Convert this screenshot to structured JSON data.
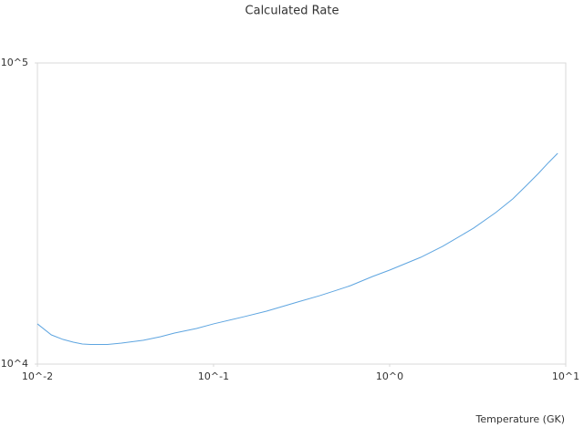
{
  "chart_data": {
    "type": "line",
    "title": "Calculated Rate",
    "x_label": "Temperature (GK)",
    "x": [
      0.01,
      0.012,
      0.014,
      0.016,
      0.018,
      0.02,
      0.025,
      0.03,
      0.04,
      0.05,
      0.06,
      0.08,
      0.1,
      0.15,
      0.2,
      0.3,
      0.4,
      0.5,
      0.6,
      0.8,
      1,
      1.5,
      2,
      3,
      4,
      5,
      6,
      7,
      8,
      9
    ],
    "series": [
      {
        "color": "#5ea5e0",
        "values": [
          13600,
          12500,
          12070,
          11820,
          11660,
          11620,
          11620,
          11740,
          12000,
          12330,
          12680,
          13130,
          13600,
          14380,
          14990,
          16070,
          16870,
          17590,
          18220,
          19540,
          20520,
          22620,
          24600,
          28290,
          31840,
          35350,
          39260,
          42980,
          46750,
          50120
        ]
      }
    ],
    "xscale": "log",
    "yscale": "log",
    "xlim": [
      0.01,
      10
    ],
    "ylim": [
      10000,
      100000
    ],
    "xticks": [
      {
        "value": 0.01,
        "label": "10^-2"
      },
      {
        "value": 0.1,
        "label": "10^-1"
      },
      {
        "value": 1,
        "label": "10^0"
      },
      {
        "value": 10,
        "label": "10^1"
      }
    ],
    "yticks": [
      {
        "value": 10000,
        "label": "10^4"
      },
      {
        "value": 100000,
        "label": "10^5"
      }
    ],
    "grid": false
  }
}
